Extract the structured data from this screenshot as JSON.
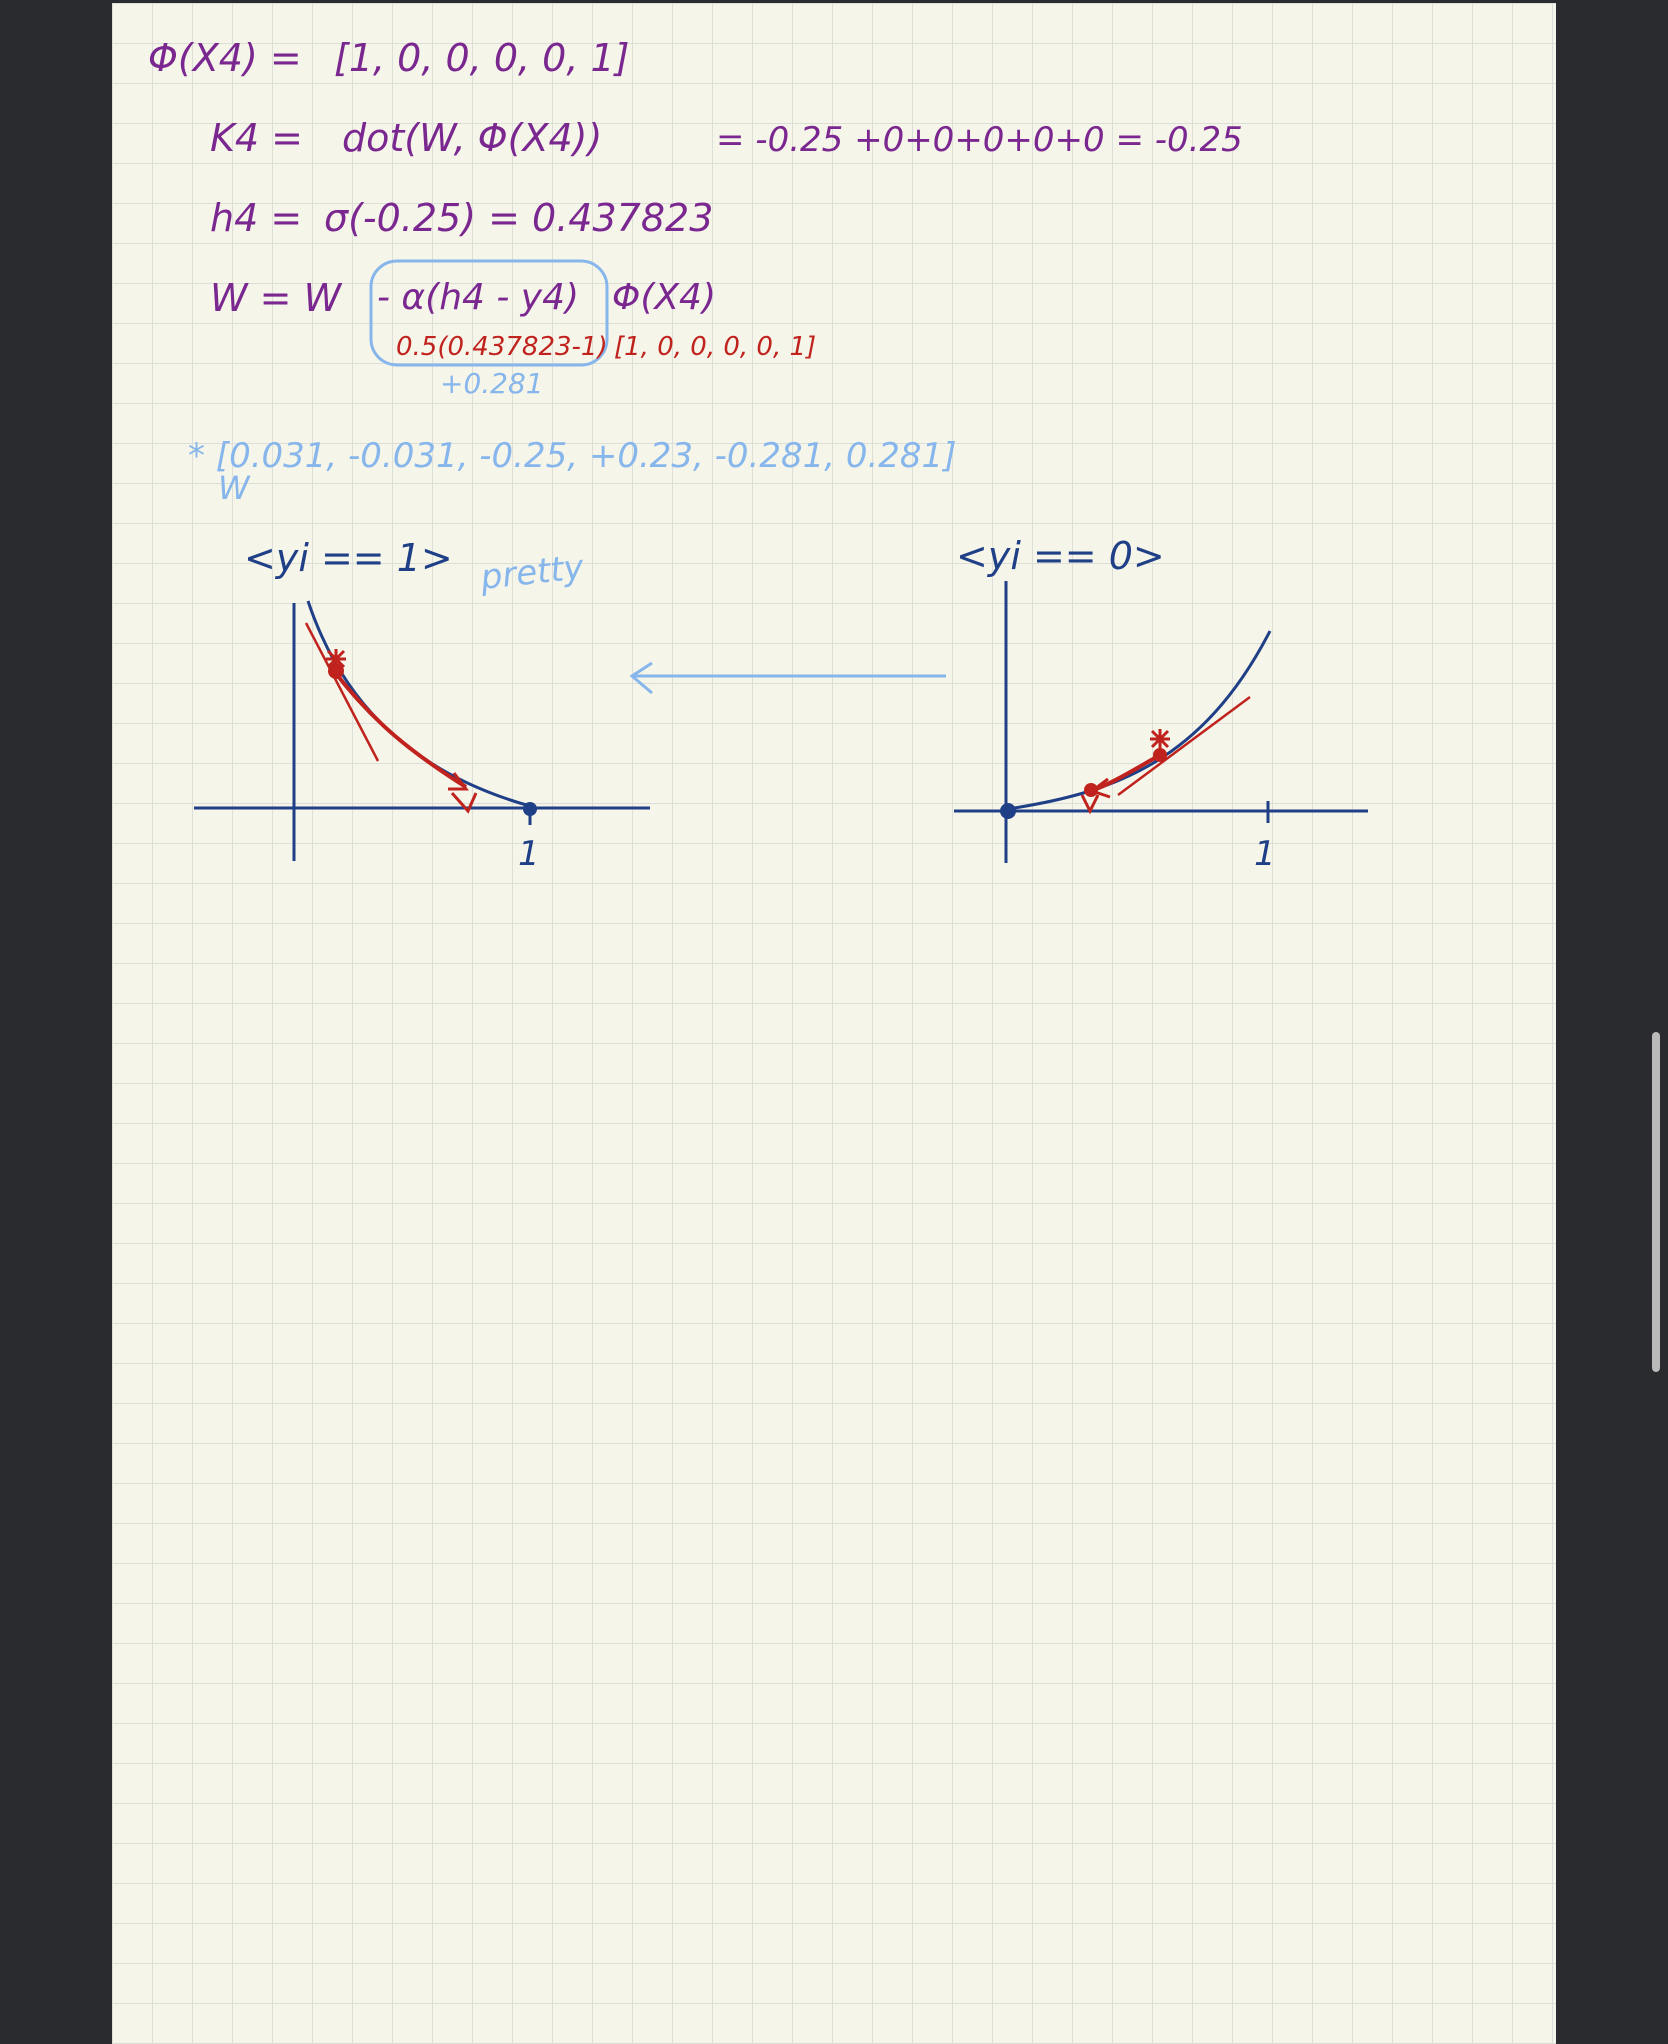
{
  "notes": {
    "line1": {
      "lhs": "Φ(X4) =",
      "rhs": "[1, 0, 0, 0, 0, 1]"
    },
    "line2": {
      "lhs": "K4 =",
      "expr": "dot(W, Φ(X4))",
      "eq": "= -0.25 +0+0+0+0+0 = -0.25"
    },
    "line3": {
      "lhs": "h4 =",
      "expr": "σ(-0.25) = 0.437823"
    },
    "line4": {
      "lhs": "W = W",
      "boxed": "- α(h4 - y4)",
      "tail": "Φ(X4)",
      "red_sub": "0.5(0.437823-1)",
      "red_vec": "[1, 0, 0, 0, 0, 1]",
      "blue_sub": "+0.281"
    },
    "result": {
      "star_vector": "* [0.031, -0.031, -0.25, +0.23, -0.281, 0.281]",
      "symbol": "W"
    }
  },
  "graphs": {
    "left": {
      "title": "<yi == 1>",
      "annotation": "pretty",
      "tick_label": "1"
    },
    "right": {
      "title": "<yi == 0>",
      "tick_label": "1"
    }
  },
  "colors": {
    "ink_purple": "#7a2790",
    "ink_red": "#c0231d",
    "ink_light_blue": "#86b6eb",
    "ink_navy": "#1f3f86",
    "paper": "#f6f5ea",
    "grid": "#dcdfd7",
    "background": "#2a2b2e"
  },
  "scrollbar": {
    "visible": true
  }
}
